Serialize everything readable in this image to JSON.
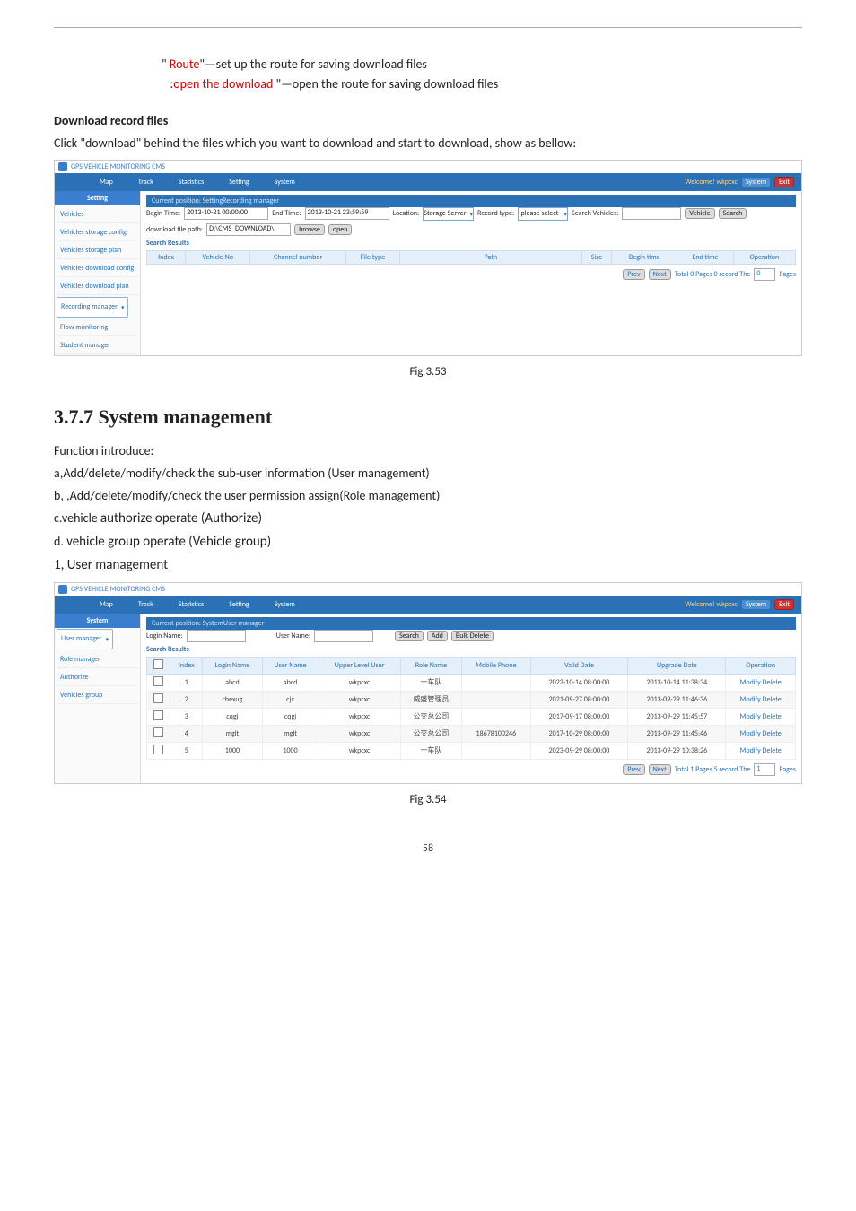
{
  "intro": {
    "line1_pre": "\" ",
    "line1_red": "Route",
    "line1_post": "\"—set up the route for saving download files",
    "line2_pre": ":",
    "line2_red": "open the download",
    "line2_post": " \"—open the route for saving download files"
  },
  "download": {
    "heading": "Download record files",
    "desc": "Click \"download\" behind the files which you want to download and start to download, show as bellow:"
  },
  "ss1": {
    "app_title": "GPS VEHICLE MONITORING CMS",
    "nav": [
      "Map",
      "Track",
      "Statistics",
      "Setting",
      "System"
    ],
    "welcome": "Welcome! wkpcxc",
    "sys_btn": "System",
    "exit_btn": "Exit",
    "crumb": "Current position: SettingRecording manager",
    "side_head": "Setting",
    "side_items": [
      "Vehicles",
      "Vehicles storage config",
      "Vehicles storage plan",
      "Vehicles download config",
      "Vehicles download plan",
      "Recording manager",
      "Flow monitoring",
      "Student manager"
    ],
    "side_selected_index": 5,
    "begin_label": "Begin Time:",
    "begin_val": "2013-10-21 00:00:00",
    "end_label": "End Time:",
    "end_val": "2013-10-21 23:59:59",
    "loc_label": "Location:",
    "loc_val": "Storage Server",
    "rec_label": "Record type:",
    "rec_val": "-please select-",
    "sv_label": "Search Vehicles:",
    "sv_val": "",
    "veh_btn": "Vehicle",
    "search_btn": "Search",
    "dl_label": "download file path:",
    "dl_val": "D:\\CMS_DOWNLOAD\\",
    "browse_btn": "browse",
    "open_btn": "open",
    "sr_head": "Search Results",
    "cols": [
      "Index",
      "Vehicle No",
      "Channel number",
      "File type",
      "Path",
      "Size",
      "Begin time",
      "End time",
      "Operation"
    ],
    "prev": "Prev",
    "next": "Next",
    "pager_text": "Total 0 Pages 0 record The",
    "pager_val": "0",
    "pager_suffix": "Pages"
  },
  "fig1": "Fig 3.53",
  "sec_heading": "3.7.7 System management",
  "func": {
    "intro": "Function   introduce:",
    "a": "a,Add/delete/modify/check the sub-user information (User management)",
    "b": "b, ,Add/delete/modify/check the user permission assign(Role management)",
    "c_pre": "c.vehicle ",
    "c_big": "authorize operate (Authorize)",
    "d_pre": "d. ",
    "d_big": "vehicle group operate (Vehicle group)"
  },
  "um_head": "1, User management",
  "ss2": {
    "app_title": "GPS VEHICLE MONITORING CMS",
    "nav": [
      "Map",
      "Track",
      "Statistics",
      "Setting",
      "System"
    ],
    "welcome": "Welcome! wkpcxc",
    "sys_btn": "System",
    "exit_btn": "Exit",
    "crumb": "Current position: SystemUser manager",
    "side_head": "System",
    "side_items": [
      "User manager",
      "Role manager",
      "Authorize",
      "Vehicles group"
    ],
    "side_selected_index": 0,
    "login_label": "Login Name:",
    "user_label": "User Name:",
    "search_btn": "Search",
    "add_btn": "Add",
    "bulk_btn": "Bulk Delete",
    "sr_head": "Search Results",
    "cols": [
      "",
      "Index",
      "Login Name",
      "User Name",
      "Upper Level User",
      "Role Name",
      "Mobile Phone",
      "Valid Date",
      "Upgrade Date",
      "Operation"
    ],
    "rows": [
      {
        "idx": "1",
        "login": "abcd",
        "user": "abcd",
        "upper": "wkpcxc",
        "role": "一车队",
        "phone": "",
        "valid": "2023-10-14 08:00:00",
        "upg": "2013-10-14 11:38:34"
      },
      {
        "idx": "2",
        "login": "chexug",
        "user": "cjx",
        "upper": "wkpcxc",
        "role": "威盛管理员",
        "phone": "",
        "valid": "2021-09-27 08:00:00",
        "upg": "2013-09-29 11:46:36"
      },
      {
        "idx": "3",
        "login": "cqgj",
        "user": "cqgj",
        "upper": "wkpcxc",
        "role": "公交总公司",
        "phone": "",
        "valid": "2017-09-17 08:00:00",
        "upg": "2013-09-29 11:45:57"
      },
      {
        "idx": "4",
        "login": "mglt",
        "user": "mglt",
        "upper": "wkpcxc",
        "role": "公交总公司",
        "phone": "18678100246",
        "valid": "2017-10-29 08:00:00",
        "upg": "2013-09-29 11:45:46"
      },
      {
        "idx": "5",
        "login": "1000",
        "user": "1000",
        "upper": "wkpcxc",
        "role": "一车队",
        "phone": "",
        "valid": "2023-09-29 08:00:00",
        "upg": "2013-09-29 10:38:26"
      }
    ],
    "op_modify": "Modify",
    "op_delete": "Delete",
    "prev": "Prev",
    "next": "Next",
    "pager_text": "Total 1 Pages 5 record The",
    "pager_val": "1",
    "pager_suffix": "Pages"
  },
  "fig2": "Fig 3.54",
  "pagenum": "58"
}
